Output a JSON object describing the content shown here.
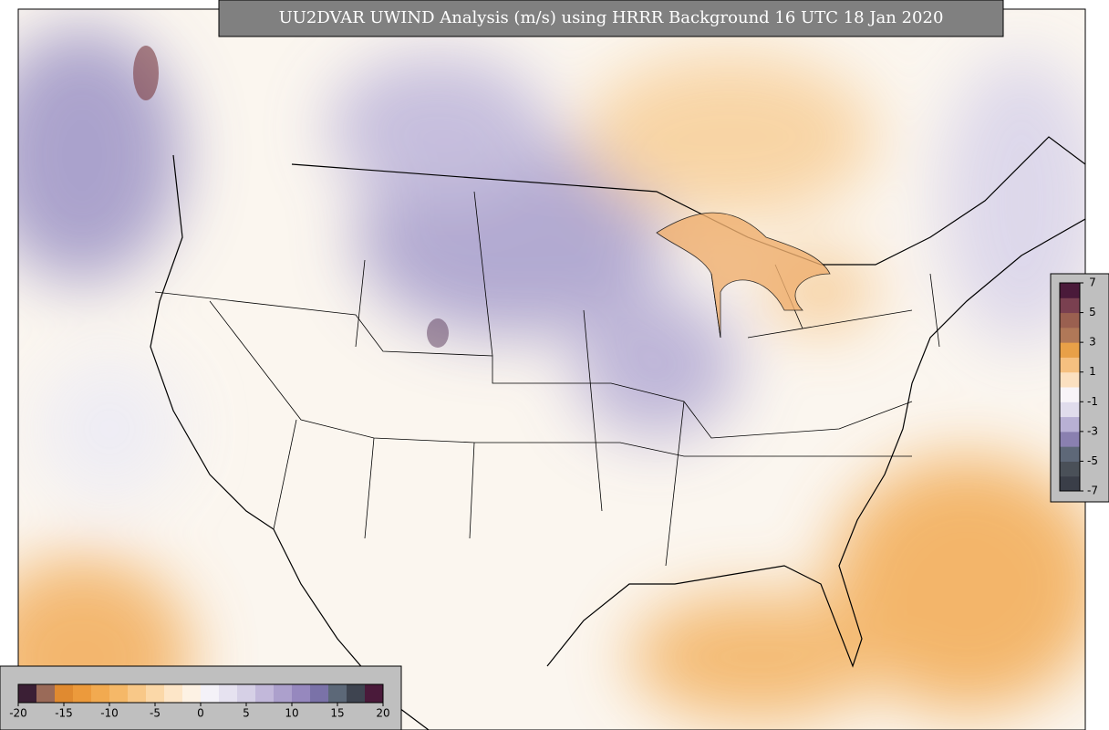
{
  "title": "UU2DVAR UWIND Analysis (m/s) using HRRR Background 16 UTC 18 Jan 2020",
  "colorbars": [
    {
      "ticks": [
        -20,
        -15,
        -10,
        -5,
        0,
        5,
        10,
        15,
        20
      ],
      "colors": [
        "#3b1f35",
        "#9a6a58",
        "#e08a30",
        "#ec9a3c",
        "#f2aa50",
        "#f5b868",
        "#f8c888",
        "#fbd8a8",
        "#fde6c8",
        "#fdf2e4",
        "#f4f2f8",
        "#e6e2f0",
        "#d6d0e6",
        "#c2b8da",
        "#aca0cc",
        "#9688be",
        "#7a72a8",
        "#5c6878",
        "#3e4450",
        "#4a1a3a"
      ]
    },
    {
      "ticks": [
        7,
        5,
        3,
        1,
        -1,
        -3,
        -5,
        -7
      ],
      "colors": [
        "#3a3e48",
        "#4a5058",
        "#5e6878",
        "#8a80b0",
        "#b8b0d4",
        "#e0dcec",
        "#f8f4f8",
        "#fbe0c0",
        "#f5c080",
        "#e8a048",
        "#b07858",
        "#9a6050",
        "#7a4050",
        "#4a1a3a"
      ]
    }
  ]
}
